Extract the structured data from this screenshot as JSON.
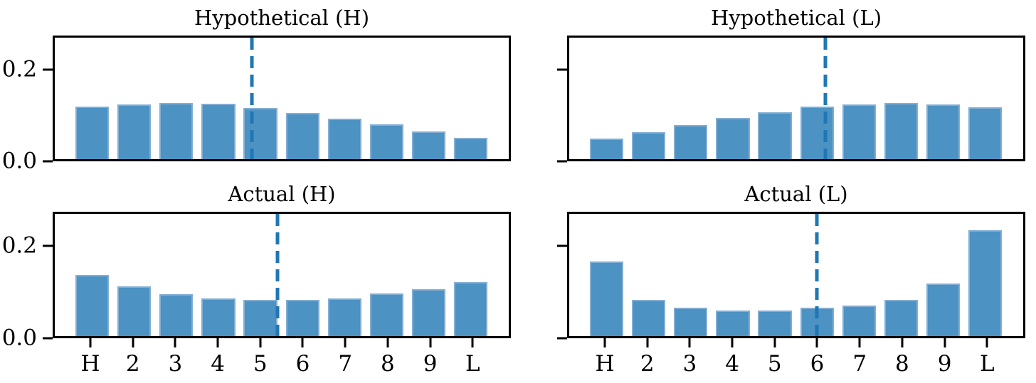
{
  "figure": {
    "background": "#ffffff",
    "rows": 2,
    "cols": 2
  },
  "style": {
    "bar_color": "#4c92c3",
    "bar_edge_color": "#8db3d7",
    "mean_line_color": "#1f77b4",
    "axis_color": "#000000",
    "text_color": "#000000"
  },
  "axes_shared": {
    "categories": [
      "H",
      "2",
      "3",
      "4",
      "5",
      "6",
      "7",
      "8",
      "9",
      "L"
    ],
    "yticks": [
      {
        "value": 0.0,
        "label": "0.0"
      },
      {
        "value": 0.2,
        "label": "0.2"
      }
    ],
    "ylim": [
      0,
      0.2744
    ],
    "grid": false,
    "legend": "none"
  },
  "chart_data": [
    {
      "type": "bar",
      "title": "Hypothetical (H)",
      "position": "top-left",
      "categories": [
        "H",
        "2",
        "3",
        "4",
        "5",
        "6",
        "7",
        "8",
        "9",
        "L"
      ],
      "values": [
        0.118,
        0.124,
        0.126,
        0.125,
        0.116,
        0.105,
        0.092,
        0.078,
        0.063,
        0.048
      ],
      "mean_vline_at_category": 4.8,
      "ylim": [
        0,
        0.2744
      ],
      "ytick_values": [
        0.0,
        0.2
      ],
      "show_ytick_labels": true,
      "show_xtick_labels": false
    },
    {
      "type": "bar",
      "title": "Hypothetical (L)",
      "position": "top-right",
      "categories": [
        "H",
        "2",
        "3",
        "4",
        "5",
        "6",
        "7",
        "8",
        "9",
        "L"
      ],
      "values": [
        0.046,
        0.061,
        0.077,
        0.093,
        0.106,
        0.118,
        0.124,
        0.127,
        0.124,
        0.117
      ],
      "mean_vline_at_category": 6.2,
      "ylim": [
        0,
        0.2744
      ],
      "ytick_values": [
        0.0,
        0.2
      ],
      "show_ytick_labels": false,
      "show_xtick_labels": false
    },
    {
      "type": "bar",
      "title": "Actual (H)",
      "position": "bottom-left",
      "categories": [
        "H",
        "2",
        "3",
        "4",
        "5",
        "6",
        "7",
        "8",
        "9",
        "L"
      ],
      "values": [
        0.137,
        0.112,
        0.094,
        0.085,
        0.082,
        0.081,
        0.084,
        0.095,
        0.106,
        0.122
      ],
      "mean_vline_at_category": 5.4,
      "ylim": [
        0,
        0.2744
      ],
      "ytick_values": [
        0.0,
        0.2
      ],
      "show_ytick_labels": true,
      "show_xtick_labels": true
    },
    {
      "type": "bar",
      "title": "Actual (L)",
      "position": "bottom-right",
      "categories": [
        "H",
        "2",
        "3",
        "4",
        "5",
        "6",
        "7",
        "8",
        "9",
        "L"
      ],
      "values": [
        0.168,
        0.081,
        0.064,
        0.058,
        0.057,
        0.064,
        0.069,
        0.082,
        0.118,
        0.238
      ],
      "mean_vline_at_category": 6.0,
      "ylim": [
        0,
        0.2744
      ],
      "ytick_values": [
        0.0,
        0.2
      ],
      "show_ytick_labels": false,
      "show_xtick_labels": true
    }
  ]
}
